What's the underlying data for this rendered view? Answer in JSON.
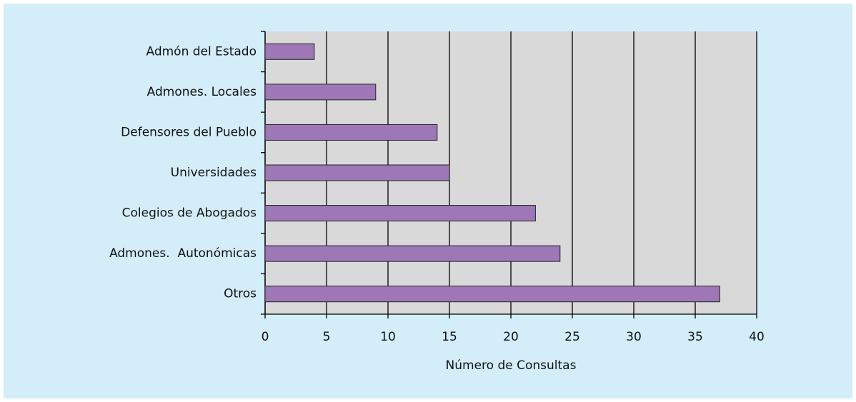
{
  "chart_data": {
    "type": "bar",
    "orientation": "horizontal",
    "categories": [
      "Admón del Estado",
      "Admones. Locales",
      "Defensores del Pueblo",
      "Universidades",
      "Colegios de Abogados",
      "Admones.  Autonómicas",
      "Otros"
    ],
    "values": [
      4,
      9,
      14,
      15,
      22,
      24,
      37
    ],
    "color": "#9e78b6",
    "xlabel": "Número de Consultas",
    "xlim": [
      0,
      40
    ],
    "xticks": [
      0,
      5,
      10,
      15,
      20,
      25,
      30,
      35,
      40
    ],
    "grid": true
  }
}
